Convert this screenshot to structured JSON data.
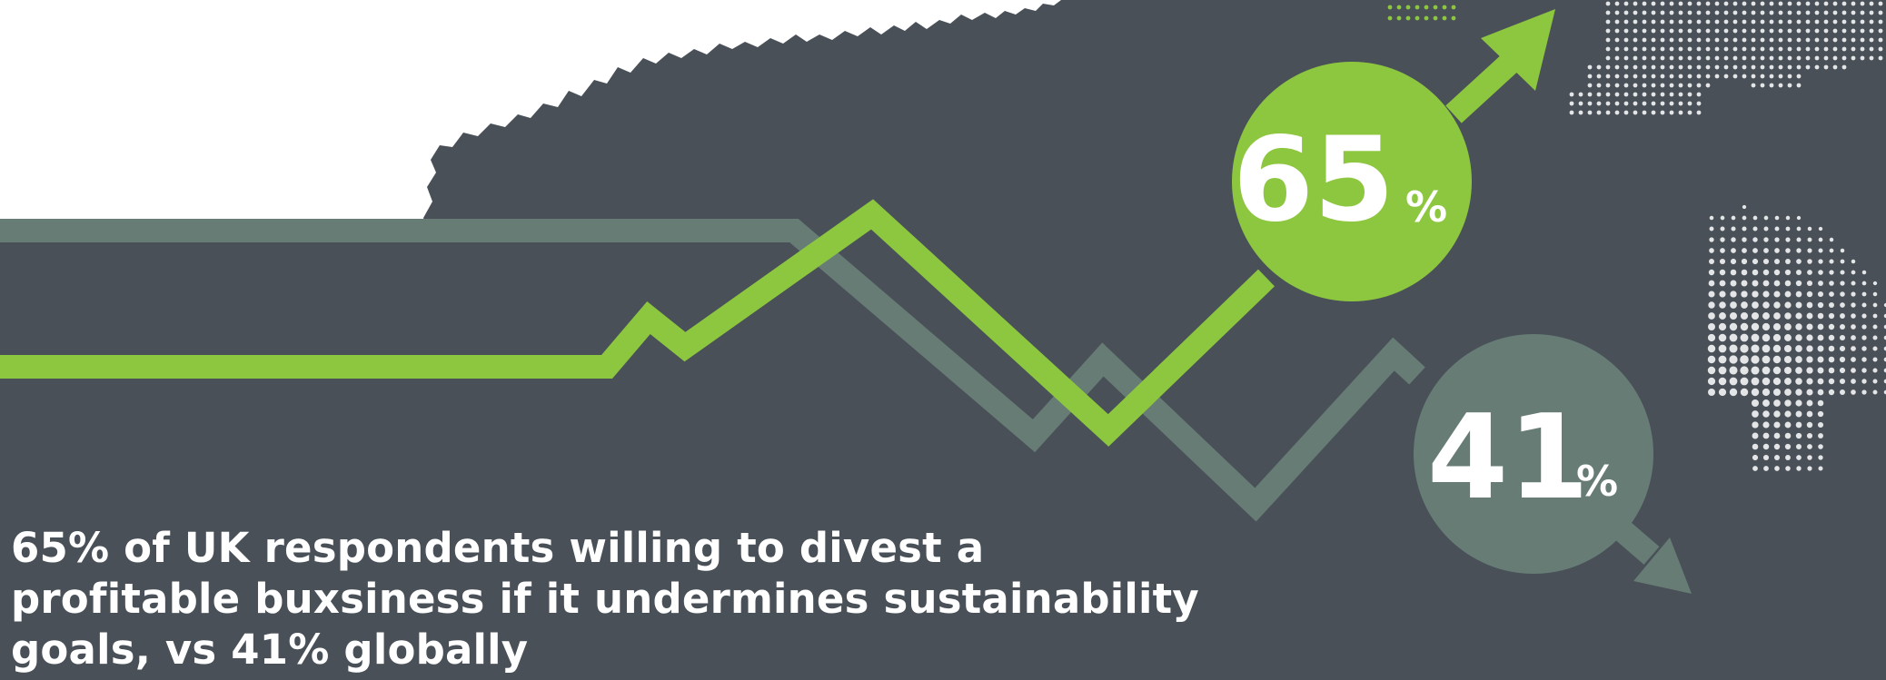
{
  "colors": {
    "background": "#495058",
    "uk_green": "#8dc63f",
    "global_grey_green": "#667c74",
    "paper_white": "#ffffff",
    "dots_white": "#e3e5e7"
  },
  "uk_stat": {
    "number": "65",
    "unit": "%"
  },
  "global_stat": {
    "number": "41",
    "unit": "%"
  },
  "headline": {
    "line1": "65% of UK respondents willing to divest a",
    "line2": "profitable buxsiness if it undermines sustainability",
    "line3": "goals, vs 41% globally"
  },
  "icons": [
    "torn-paper-shape",
    "world-map-dots-icon",
    "globe-dots-icon",
    "up-arrow-icon",
    "down-arrow-icon"
  ]
}
